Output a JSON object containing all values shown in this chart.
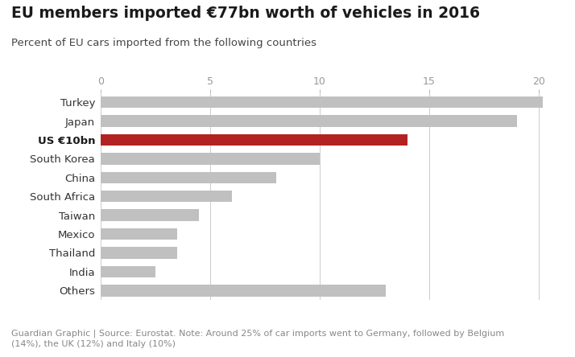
{
  "title": "EU members imported €77bn worth of vehicles in 2016",
  "subtitle": "Percent of EU cars imported from the following countries",
  "footnote": "Guardian Graphic | Source: Eurostat. Note: Around 25% of car imports went to Germany, followed by Belgium\n(14%), the UK (12%) and Italy (10%)",
  "categories": [
    "Turkey",
    "Japan",
    "US €10bn",
    "South Korea",
    "China",
    "South Africa",
    "Taiwan",
    "Mexico",
    "Thailand",
    "India",
    "Others"
  ],
  "values": [
    20.2,
    19.0,
    14.0,
    10.0,
    8.0,
    6.0,
    4.5,
    3.5,
    3.5,
    2.5,
    13.0
  ],
  "colors": [
    "#c0c0c0",
    "#c0c0c0",
    "#b22222",
    "#c0c0c0",
    "#c0c0c0",
    "#c0c0c0",
    "#c0c0c0",
    "#c0c0c0",
    "#c0c0c0",
    "#c0c0c0",
    "#c0c0c0"
  ],
  "bold_labels": [
    false,
    false,
    true,
    false,
    false,
    false,
    false,
    false,
    false,
    false,
    false
  ],
  "xlim": [
    0,
    21
  ],
  "xticks": [
    0,
    5,
    10,
    15,
    20
  ],
  "background_color": "#ffffff",
  "bar_height": 0.62,
  "title_color": "#1a1a1a",
  "subtitle_color": "#444444",
  "footnote_color": "#888888",
  "grid_color": "#cccccc",
  "tick_color": "#999999",
  "label_color": "#333333",
  "label_fontsize": 9.5,
  "tick_fontsize": 9.0,
  "title_fontsize": 13.5,
  "subtitle_fontsize": 9.5,
  "footnote_fontsize": 8.0
}
